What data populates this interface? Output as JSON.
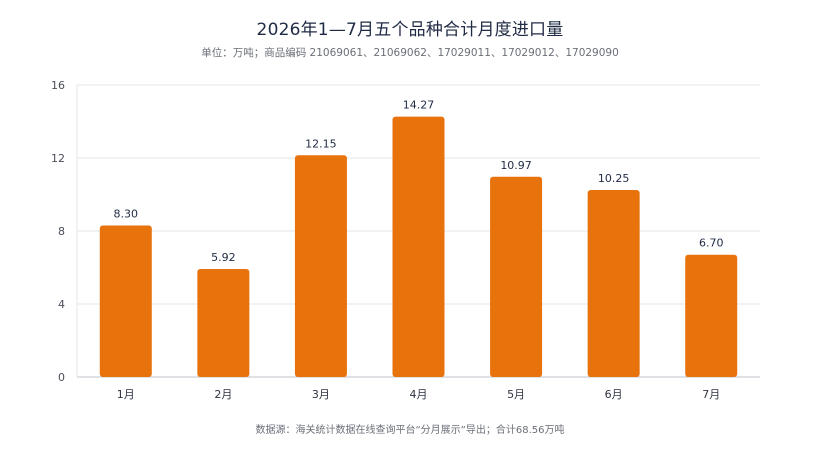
{
  "title": "2026年1—7月五个品种合计月度进口量",
  "subtitle": "单位：万吨；商品编码 21069061、21069062、17029011、17029012、17029090",
  "footer": "数据源：海关统计数据在线查询平台“分月展示”导出；合计68.56万吨",
  "colors": {
    "bar": "#e8720c"
  },
  "chart_data": {
    "type": "bar",
    "categories": [
      "1月",
      "2月",
      "3月",
      "4月",
      "5月",
      "6月",
      "7月"
    ],
    "values": [
      8.3,
      5.92,
      12.15,
      14.27,
      10.97,
      10.25,
      6.7
    ],
    "value_labels": [
      "8.30",
      "5.92",
      "12.15",
      "14.27",
      "10.97",
      "10.25",
      "6.70"
    ],
    "ylim": [
      0,
      16
    ],
    "yticks": [
      0,
      4,
      8,
      12,
      16
    ],
    "grid": true,
    "xlabel": "",
    "ylabel": ""
  }
}
